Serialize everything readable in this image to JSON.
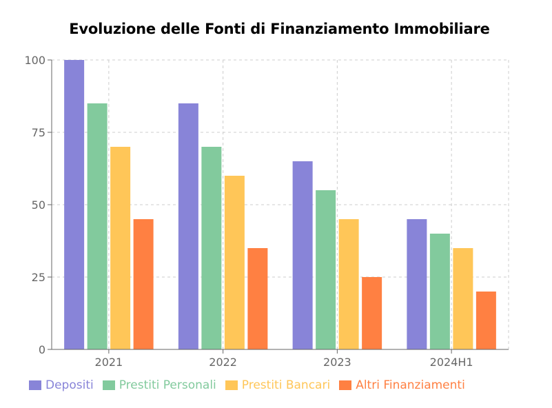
{
  "chart_data": {
    "type": "bar",
    "title": "Evoluzione delle Fonti di Finanziamento Immobiliare",
    "xlabel": "",
    "ylabel": "",
    "categories": [
      "2021",
      "2022",
      "2023",
      "2024H1"
    ],
    "ylim": [
      0,
      100
    ],
    "yticks": [
      "0",
      "25",
      "50",
      "75",
      "100"
    ],
    "grid": true,
    "legend_position": "bottom-left",
    "series": [
      {
        "name": "Depositi",
        "color": "#8884d8",
        "values": [
          100,
          85,
          65,
          45
        ]
      },
      {
        "name": "Prestiti Personali",
        "color": "#82ca9d",
        "values": [
          85,
          70,
          55,
          40
        ]
      },
      {
        "name": "Prestiti Bancari",
        "color": "#ffc658",
        "values": [
          70,
          60,
          45,
          35
        ]
      },
      {
        "name": "Altri Finanziamenti",
        "color": "#ff8042",
        "values": [
          45,
          35,
          25,
          20
        ]
      }
    ]
  }
}
